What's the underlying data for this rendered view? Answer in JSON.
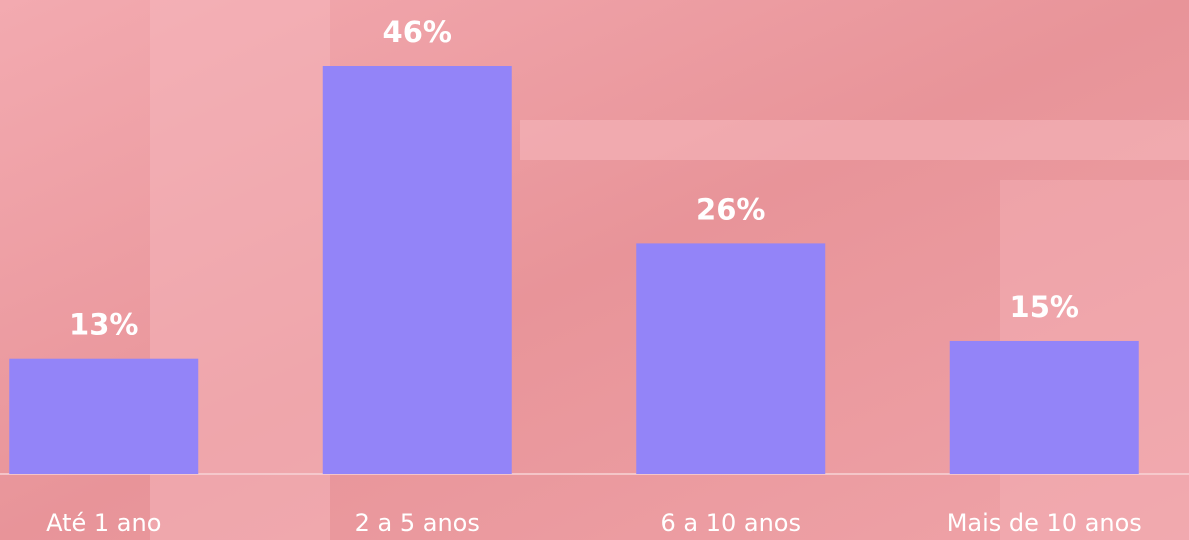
{
  "chart_data": {
    "type": "bar",
    "categories": [
      "Até 1 ano",
      "2 a 5 anos",
      "6 a 10 anos",
      "Mais de 10 anos"
    ],
    "values": [
      13,
      46,
      26,
      15
    ],
    "value_labels": [
      "13%",
      "46%",
      "26%",
      "15%"
    ],
    "color": "#9384f8"
  }
}
